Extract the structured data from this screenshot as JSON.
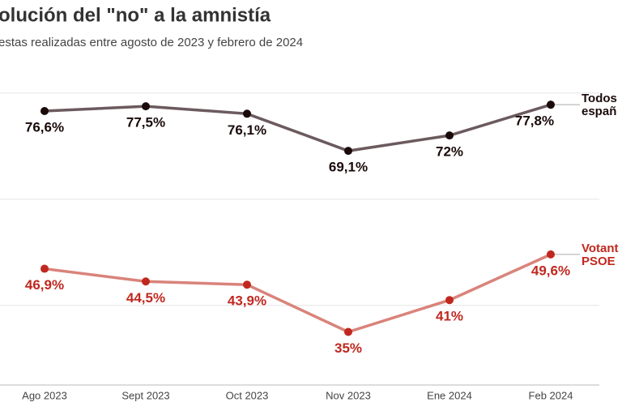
{
  "chart_data": {
    "type": "line",
    "title": "olución del \"no\" a la amnistía",
    "subtitle": "estas realizadas entre agosto de 2023 y febrero de 2024",
    "categories": [
      "Ago 2023",
      "Sept 2023",
      "Oct 2023",
      "Nov 2023",
      "Ene 2024",
      "Feb 2024"
    ],
    "series": [
      {
        "name": "Todos españ",
        "color": "#6b5a5e",
        "marker_color": "#1a0a0a",
        "values": [
          76.6,
          77.5,
          76.1,
          69.1,
          72,
          77.8
        ],
        "value_labels": [
          "76,6%",
          "77,5%",
          "76,1%",
          "69,1%",
          "72%",
          "77,8%"
        ]
      },
      {
        "name": "Votant PSOE",
        "color": "#d9837a",
        "marker_color": "#c0281f",
        "values": [
          46.9,
          44.5,
          43.9,
          35,
          41,
          49.6
        ],
        "value_labels": [
          "46,9%",
          "44,5%",
          "43,9%",
          "35%",
          "41%",
          "49,6%"
        ]
      }
    ],
    "ylim": [
      25,
      85
    ],
    "yticks": [
      40,
      60,
      80
    ],
    "grid": true
  }
}
